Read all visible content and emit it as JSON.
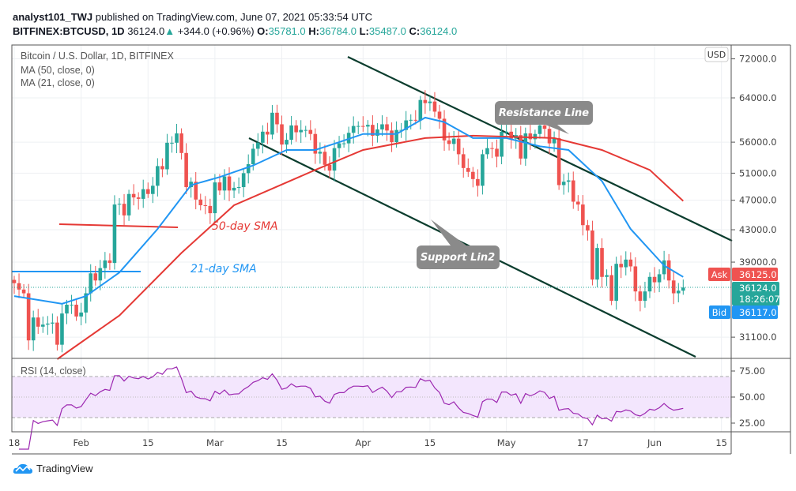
{
  "header": {
    "author": "analyst101_TWJ",
    "published": " published on TradingView.com, June 07, 2021 05:33:54 UTC",
    "symbol": "BITFINEX:BTCUSD, 1D",
    "last": "36124.0",
    "change": "+344.0 (+0.96%)",
    "o_label": "O:",
    "o": "35781.0",
    "h_label": "H:",
    "h": "36784.0",
    "l_label": "L:",
    "l": "35487.0",
    "c_label": "C:",
    "c": "36124.0"
  },
  "legend": {
    "title": "Bitcoin / U.S. Dollar, 1D, BITFINEX",
    "ma50": "MA (50, close, 0)",
    "ma21": "MA (21, close, 0)",
    "rsi": "RSI (14, close)"
  },
  "currency_badge": "USD",
  "annotations": {
    "resistance": "Resistance Line",
    "support": "Support Lin2",
    "sma50": "50-day SMA",
    "sma21": "21-day SMA"
  },
  "price_labels": {
    "ask_label": "Ask",
    "ask": "36125.0",
    "last": "36124.0",
    "countdown": "18:26:07",
    "bid_label": "Bid",
    "bid": "36117.0"
  },
  "brand": "TradingView",
  "colors": {
    "up": "#26a69a",
    "down": "#ef5350",
    "ma50": "#e53935",
    "ma21": "#2196f3",
    "trend": "#0b3d2e",
    "rsi": "#9c27b0"
  },
  "chart_data": {
    "type": "candlestick",
    "scale": "log",
    "start_date": "2021-01-18",
    "y_ticks": [
      "72000.0",
      "64000.0",
      "56000.0",
      "51000.0",
      "47000.0",
      "43000.0",
      "39000.0",
      "31100.0"
    ],
    "x_ticks": [
      {
        "label": "18",
        "date": "2021-01-18"
      },
      {
        "label": "Feb",
        "date": "2021-02-01"
      },
      {
        "label": "15",
        "date": "2021-02-15"
      },
      {
        "label": "Mar",
        "date": "2021-03-01"
      },
      {
        "label": "15",
        "date": "2021-03-15"
      },
      {
        "label": "Apr",
        "date": "2021-04-01"
      },
      {
        "label": "15",
        "date": "2021-04-15"
      },
      {
        "label": "May",
        "date": "2021-05-01"
      },
      {
        "label": "17",
        "date": "2021-05-17"
      },
      {
        "label": "Jun",
        "date": "2021-06-01"
      },
      {
        "label": "15",
        "date": "2021-06-15"
      }
    ],
    "closes": [
      36600,
      35900,
      35500,
      30800,
      33000,
      32100,
      32300,
      32400,
      32500,
      30400,
      33400,
      34300,
      34300,
      33100,
      33500,
      35500,
      37700,
      36900,
      38300,
      39200,
      38900,
      46400,
      46500,
      44900,
      47900,
      47400,
      47200,
      48600,
      47900,
      49100,
      52100,
      51600,
      55900,
      55900,
      57500,
      54200,
      48900,
      49700,
      47100,
      46300,
      46200,
      45200,
      49600,
      48400,
      50500,
      48400,
      48800,
      48900,
      51000,
      52400,
      54900,
      55900,
      57800,
      57300,
      61200,
      59100,
      55600,
      56400,
      58900,
      57700,
      58100,
      58100,
      57400,
      54100,
      54400,
      52300,
      51400,
      55000,
      55800,
      55800,
      57600,
      58800,
      58800,
      58700,
      59000,
      57100,
      58200,
      59100,
      58000,
      56000,
      58100,
      58100,
      59800,
      59900,
      59800,
      63600,
      63000,
      63300,
      61400,
      60100,
      56300,
      55700,
      56600,
      54000,
      51800,
      51200,
      50100,
      49100,
      54000,
      55000,
      54900,
      53600,
      57800,
      57800,
      56600,
      57200,
      53300,
      57500,
      56500,
      57400,
      58900,
      58300,
      55800,
      56700,
      49200,
      49700,
      49900,
      46800,
      46400,
      43600,
      42900,
      37000,
      40700,
      37300,
      37500,
      34700,
      38800,
      38400,
      39300,
      38500,
      35700,
      34700,
      35700,
      37300,
      36700,
      37600,
      39200,
      36900,
      35500,
      35781,
      36124
    ],
    "ma50": [
      [
        "2021-01-27",
        29100
      ],
      [
        "2021-02-09",
        33200
      ],
      [
        "2021-02-22",
        40100
      ],
      [
        "2021-03-05",
        46300
      ],
      [
        "2021-03-22",
        51500
      ],
      [
        "2021-04-01",
        54700
      ],
      [
        "2021-04-14",
        56700
      ],
      [
        "2021-04-24",
        57100
      ],
      [
        "2021-05-11",
        56700
      ],
      [
        "2021-05-21",
        54700
      ],
      [
        "2021-05-31",
        51500
      ],
      [
        "2021-06-07",
        46900
      ]
    ],
    "ma21": [
      [
        "2021-01-18",
        35200
      ],
      [
        "2021-01-28",
        34400
      ],
      [
        "2021-02-02",
        35200
      ],
      [
        "2021-02-09",
        37800
      ],
      [
        "2021-02-17",
        43100
      ],
      [
        "2021-02-24",
        49200
      ],
      [
        "2021-03-02",
        50400
      ],
      [
        "2021-03-09",
        52200
      ],
      [
        "2021-03-16",
        54700
      ],
      [
        "2021-03-22",
        54700
      ],
      [
        "2021-03-27",
        56000
      ],
      [
        "2021-04-01",
        57400
      ],
      [
        "2021-04-08",
        57400
      ],
      [
        "2021-04-14",
        60300
      ],
      [
        "2021-04-18",
        59500
      ],
      [
        "2021-04-24",
        56700
      ],
      [
        "2021-05-01",
        56700
      ],
      [
        "2021-05-08",
        55300
      ],
      [
        "2021-05-14",
        54700
      ],
      [
        "2021-05-21",
        49800
      ],
      [
        "2021-05-27",
        43100
      ],
      [
        "2021-06-03",
        38600
      ],
      [
        "2021-06-07",
        37300
      ]
    ],
    "rsi_ticks": [
      "75.00",
      "50.00",
      "25.00"
    ],
    "rsi_band": [
      30,
      70
    ]
  }
}
